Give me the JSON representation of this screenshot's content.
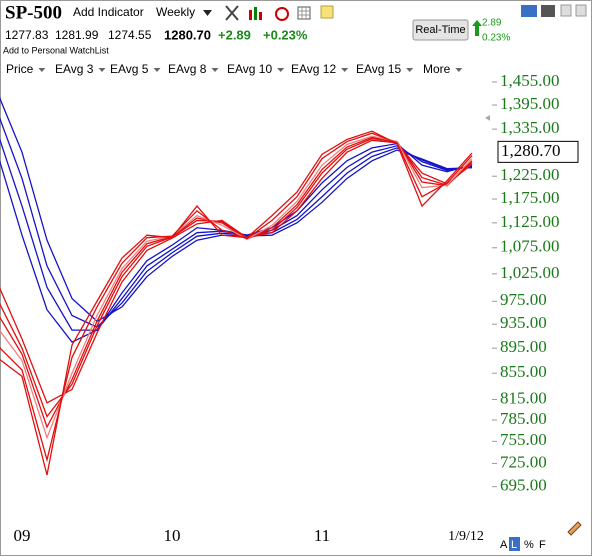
{
  "header": {
    "symbol": "SP-500",
    "add_indicator": "Add Indicator",
    "period": "Weekly",
    "open": "1277.83",
    "high": "1281.99",
    "low": "1274.55",
    "close": "1280.70",
    "change": "+2.89",
    "change_pct": "+0.23%",
    "watchlist": "Add to Personal WatchList",
    "realtime_button": "Real-Time",
    "rt_change": "2.89",
    "rt_change_pct": "0.23%"
  },
  "menu": {
    "price": "Price",
    "more": "More"
  },
  "footer": {
    "buttons": [
      "A",
      "L",
      "%",
      "F"
    ]
  },
  "chart_data": {
    "type": "line",
    "log_scale": true,
    "categories": [
      null,
      "09",
      null,
      null,
      null,
      null,
      null,
      "10",
      null,
      null,
      null,
      null,
      null,
      "11",
      null,
      null,
      null,
      null,
      null,
      "1/9/12"
    ],
    "ylim": [
      654,
      1509
    ],
    "yticks": [
      {
        "value": 1455,
        "label": "1,455.00"
      },
      {
        "value": 1395,
        "label": "1,395.00"
      },
      {
        "value": 1335,
        "label": "1,335.00"
      },
      {
        "value": 1225,
        "label": "1,225.00"
      },
      {
        "value": 1175,
        "label": "1,175.00"
      },
      {
        "value": 1125,
        "label": "1,125.00"
      },
      {
        "value": 1075,
        "label": "1,075.00"
      },
      {
        "value": 1025,
        "label": "1,025.00"
      },
      {
        "value": 975,
        "label": "975.00"
      },
      {
        "value": 935,
        "label": "935.00"
      },
      {
        "value": 895,
        "label": "895.00"
      },
      {
        "value": 855,
        "label": "855.00"
      },
      {
        "value": 815,
        "label": "815.00"
      },
      {
        "value": 785,
        "label": "785.00"
      },
      {
        "value": 755,
        "label": "755.00"
      },
      {
        "value": 725,
        "label": "725.00"
      },
      {
        "value": 695,
        "label": "695.00"
      }
    ],
    "last_price": {
      "value": 1280.7,
      "label": "1,280.70"
    },
    "series": [
      {
        "name": "EAvg 3",
        "color": "#e01010",
        "values": [
          880,
          850,
          710,
          900,
          975,
          1055,
          1100,
          1095,
          1160,
          1100,
          1095,
          1140,
          1190,
          1275,
          1310,
          1330,
          1300,
          1160,
          1215,
          1278
        ]
      },
      {
        "name": "EAvg 5",
        "color": "#e01010",
        "values": [
          900,
          860,
          730,
          880,
          965,
          1045,
          1095,
          1098,
          1150,
          1110,
          1093,
          1130,
          1180,
          1265,
          1305,
          1325,
          1302,
          1180,
          1210,
          1272
        ]
      },
      {
        "name": "EAvg 8",
        "color": "#f08080",
        "values": [
          930,
          875,
          760,
          855,
          950,
          1035,
          1088,
          1098,
          1140,
          1120,
          1092,
          1120,
          1170,
          1250,
          1298,
          1318,
          1305,
          1200,
          1205,
          1265
        ]
      },
      {
        "name": "EAvg 10",
        "color": "#e01010",
        "values": [
          955,
          885,
          775,
          845,
          940,
          1028,
          1083,
          1097,
          1135,
          1125,
          1092,
          1115,
          1163,
          1240,
          1292,
          1315,
          1305,
          1212,
          1204,
          1260
        ]
      },
      {
        "name": "EAvg 12",
        "color": "#e01010",
        "values": [
          980,
          895,
          790,
          838,
          932,
          1020,
          1078,
          1096,
          1130,
          1128,
          1093,
          1110,
          1157,
          1232,
          1287,
          1312,
          1304,
          1222,
          1205,
          1256
        ]
      },
      {
        "name": "EAvg 15",
        "color": "#e01010",
        "values": [
          1010,
          910,
          810,
          830,
          920,
          1010,
          1070,
          1094,
          1123,
          1130,
          1095,
          1105,
          1150,
          1220,
          1280,
          1308,
          1302,
          1232,
          1208,
          1252
        ]
      },
      {
        "color": "#1414c8",
        "values": [
          1280,
          1100,
          960,
          905,
          925,
          990,
          1050,
          1080,
          1115,
          1110,
          1100,
          1115,
          1150,
          1210,
          1260,
          1290,
          1300,
          1250,
          1235,
          1250
        ]
      },
      {
        "color": "#1414c8",
        "values": [
          1330,
          1160,
          1000,
          925,
          925,
          980,
          1040,
          1072,
          1105,
          1108,
          1100,
          1110,
          1140,
          1195,
          1245,
          1280,
          1295,
          1258,
          1238,
          1248
        ]
      },
      {
        "color": "#1414c8",
        "values": [
          1380,
          1220,
          1040,
          950,
          930,
          972,
          1030,
          1065,
          1098,
          1104,
          1100,
          1105,
          1132,
          1180,
          1232,
          1270,
          1290,
          1262,
          1240,
          1246
        ]
      },
      {
        "color": "#1414c8",
        "values": [
          1430,
          1280,
          1090,
          980,
          940,
          965,
          1020,
          1058,
          1090,
          1100,
          1098,
          1100,
          1125,
          1168,
          1220,
          1260,
          1285,
          1264,
          1242,
          1244
        ]
      }
    ]
  }
}
